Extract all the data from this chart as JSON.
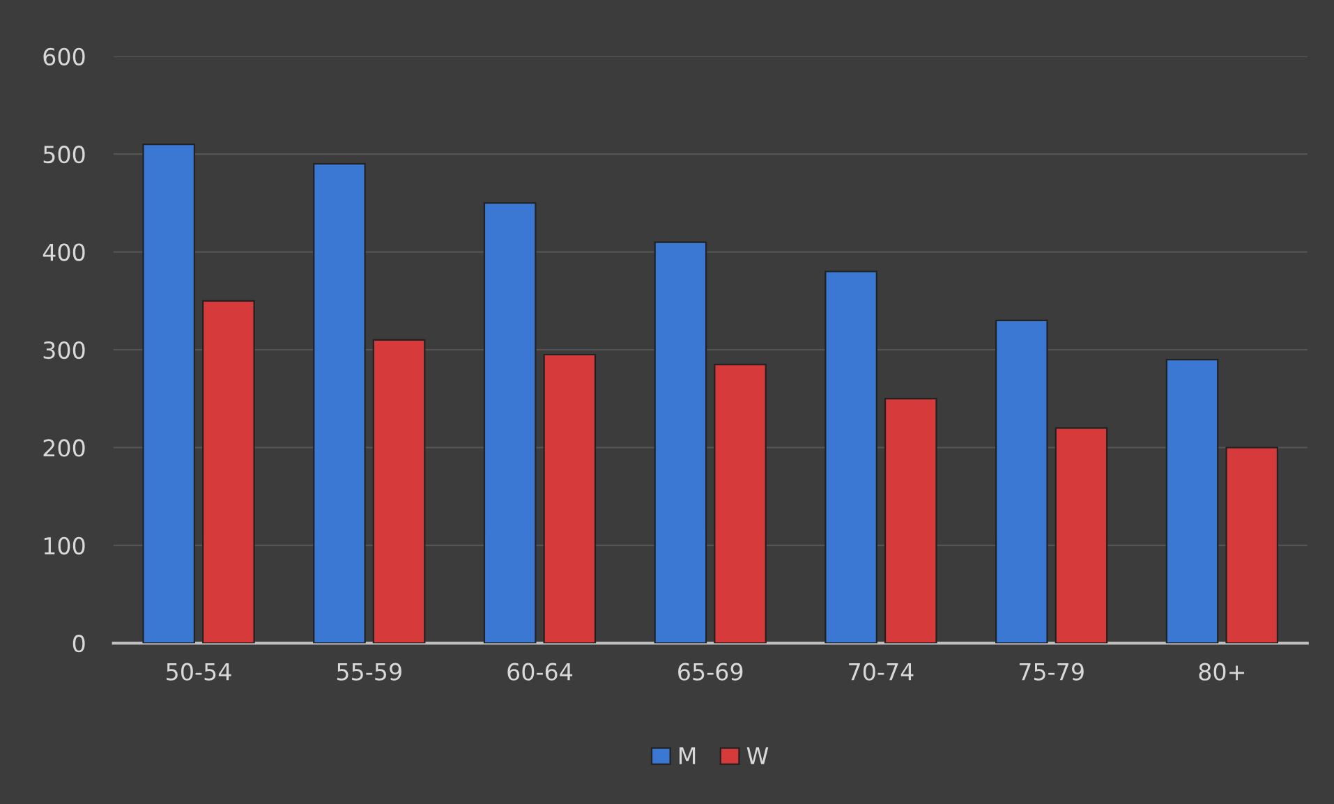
{
  "chart_data": {
    "type": "bar",
    "categories": [
      "50-54",
      "55-59",
      "60-64",
      "65-69",
      "70-74",
      "75-79",
      "80+"
    ],
    "series": [
      {
        "name": "M",
        "color": "#3a78d4",
        "values": [
          510,
          490,
          450,
          410,
          380,
          330,
          290
        ]
      },
      {
        "name": "W",
        "color": "#d63a3a",
        "values": [
          350,
          310,
          295,
          285,
          250,
          220,
          200
        ]
      }
    ],
    "ylim": [
      0,
      600
    ],
    "yticks": [
      0,
      100,
      200,
      300,
      400,
      500,
      600
    ],
    "grid": "y",
    "legend": "bottom"
  }
}
